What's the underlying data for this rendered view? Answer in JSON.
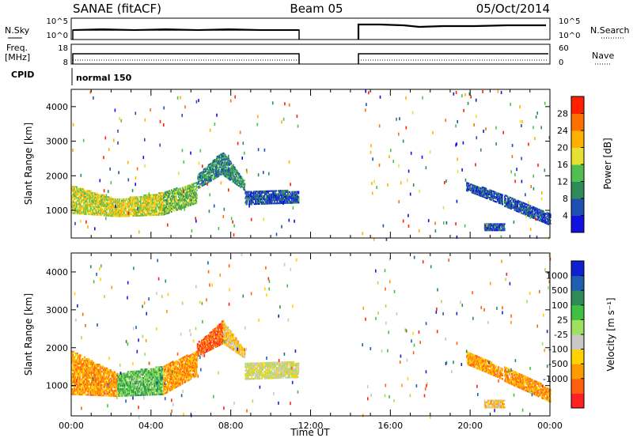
{
  "header": {
    "station": "SANAE (fitACF)",
    "beam": "Beam 05",
    "date": "05/Oct/2014"
  },
  "top_panels": {
    "nsky_label": "N.Sky",
    "nsky_ticks": [
      "10^5",
      "10^0"
    ],
    "nsearch_label": "N.Search",
    "nsearch_ticks": [
      "10^5",
      "10^0"
    ],
    "freq_label": "Freq.",
    "freq_unit": "[MHz]",
    "freq_ticks": [
      "18",
      "8"
    ],
    "nave_label": "Nave",
    "nave_ticks": [
      "60",
      "0"
    ],
    "cpid_label": "CPID",
    "cpid_value": "normal 150"
  },
  "colors": {
    "power": [
      "#1010e0",
      "#1f4fb0",
      "#2e8b57",
      "#4fbf4f",
      "#e8e030",
      "#ffb000",
      "#ff7000",
      "#ff2000"
    ],
    "velocity": [
      "#ff2020",
      "#ff6010",
      "#ff9a00",
      "#ffd200",
      "#c8c8c8",
      "#a0e060",
      "#40c040",
      "#2e8b57",
      "#1e5fb0",
      "#1020d0"
    ]
  },
  "chart_data": [
    {
      "type": "heatmap",
      "name": "power",
      "xlabel": "",
      "ylabel": "Slant Range [km]",
      "xlim": [
        0,
        24
      ],
      "ylim": [
        200,
        4500
      ],
      "yticks": [
        "1000",
        "2000",
        "3000",
        "4000"
      ],
      "colorbar_label": "Power [dB]",
      "colorbar_ticks": [
        "4",
        "8",
        "12",
        "16",
        "20",
        "24",
        "28"
      ],
      "bands": [
        {
          "t": [
            0.0,
            2.3
          ],
          "lo": [
            900,
            800
          ],
          "hi": [
            1700,
            1300
          ],
          "class": 4
        },
        {
          "t": [
            2.3,
            4.6
          ],
          "lo": [
            800,
            850
          ],
          "hi": [
            1300,
            1500
          ],
          "class": 4
        },
        {
          "t": [
            4.6,
            6.3
          ],
          "lo": [
            850,
            1200
          ],
          "hi": [
            1500,
            1800
          ],
          "class": 3
        },
        {
          "t": [
            6.3,
            7.6
          ],
          "lo": [
            1600,
            2050
          ],
          "hi": [
            2000,
            2700
          ],
          "class": 2
        },
        {
          "t": [
            7.6,
            8.7
          ],
          "lo": [
            2000,
            1550
          ],
          "hi": [
            2700,
            1800
          ],
          "class": 2
        },
        {
          "t": [
            8.7,
            11.4
          ],
          "lo": [
            1150,
            1200
          ],
          "hi": [
            1550,
            1550
          ],
          "class": 1
        },
        {
          "t": [
            19.8,
            21.6
          ],
          "lo": [
            1550,
            1150
          ],
          "hi": [
            1800,
            1450
          ],
          "class": 1
        },
        {
          "t": [
            20.7,
            21.7
          ],
          "lo": [
            400,
            400
          ],
          "hi": [
            600,
            600
          ],
          "class": 1
        },
        {
          "t": [
            21.7,
            24.0
          ],
          "lo": [
            1100,
            550
          ],
          "hi": [
            1450,
            900
          ],
          "class": 1
        }
      ]
    },
    {
      "type": "heatmap",
      "name": "velocity",
      "xlabel": "Time UT",
      "ylabel": "Slant Range [km]",
      "xlim": [
        0,
        24
      ],
      "ylim": [
        200,
        4500
      ],
      "xticks": [
        "00:00",
        "04:00",
        "08:00",
        "12:00",
        "16:00",
        "20:00",
        "00:00"
      ],
      "yticks": [
        "1000",
        "2000",
        "3000",
        "4000"
      ],
      "colorbar_label": "Velocity [m s⁻¹]",
      "colorbar_ticks": [
        "1000",
        "500",
        "100",
        "25",
        "-25",
        "-100",
        "-500",
        "-1000"
      ],
      "bands": [
        {
          "t": [
            0.0,
            2.3
          ],
          "lo": [
            750,
            700
          ],
          "hi": [
            1900,
            1300
          ],
          "class": 2
        },
        {
          "t": [
            2.3,
            4.6
          ],
          "lo": [
            700,
            750
          ],
          "hi": [
            1300,
            1500
          ],
          "class": 6
        },
        {
          "t": [
            4.6,
            6.3
          ],
          "lo": [
            750,
            1250
          ],
          "hi": [
            1500,
            1900
          ],
          "class": 2
        },
        {
          "t": [
            6.3,
            7.6
          ],
          "lo": [
            1750,
            2100
          ],
          "hi": [
            2100,
            2700
          ],
          "class": 1
        },
        {
          "t": [
            7.6,
            8.7
          ],
          "lo": [
            2100,
            1700
          ],
          "hi": [
            2700,
            1900
          ],
          "class": 3
        },
        {
          "t": [
            8.7,
            11.4
          ],
          "lo": [
            1150,
            1200
          ],
          "hi": [
            1600,
            1600
          ],
          "class": 4
        },
        {
          "t": [
            19.8,
            21.6
          ],
          "lo": [
            1550,
            1150
          ],
          "hi": [
            1900,
            1450
          ],
          "class": 2
        },
        {
          "t": [
            20.7,
            21.7
          ],
          "lo": [
            400,
            400
          ],
          "hi": [
            600,
            600
          ],
          "class": 3
        },
        {
          "t": [
            21.7,
            24.0
          ],
          "lo": [
            1100,
            550
          ],
          "hi": [
            1500,
            900
          ],
          "class": 2
        }
      ]
    }
  ]
}
